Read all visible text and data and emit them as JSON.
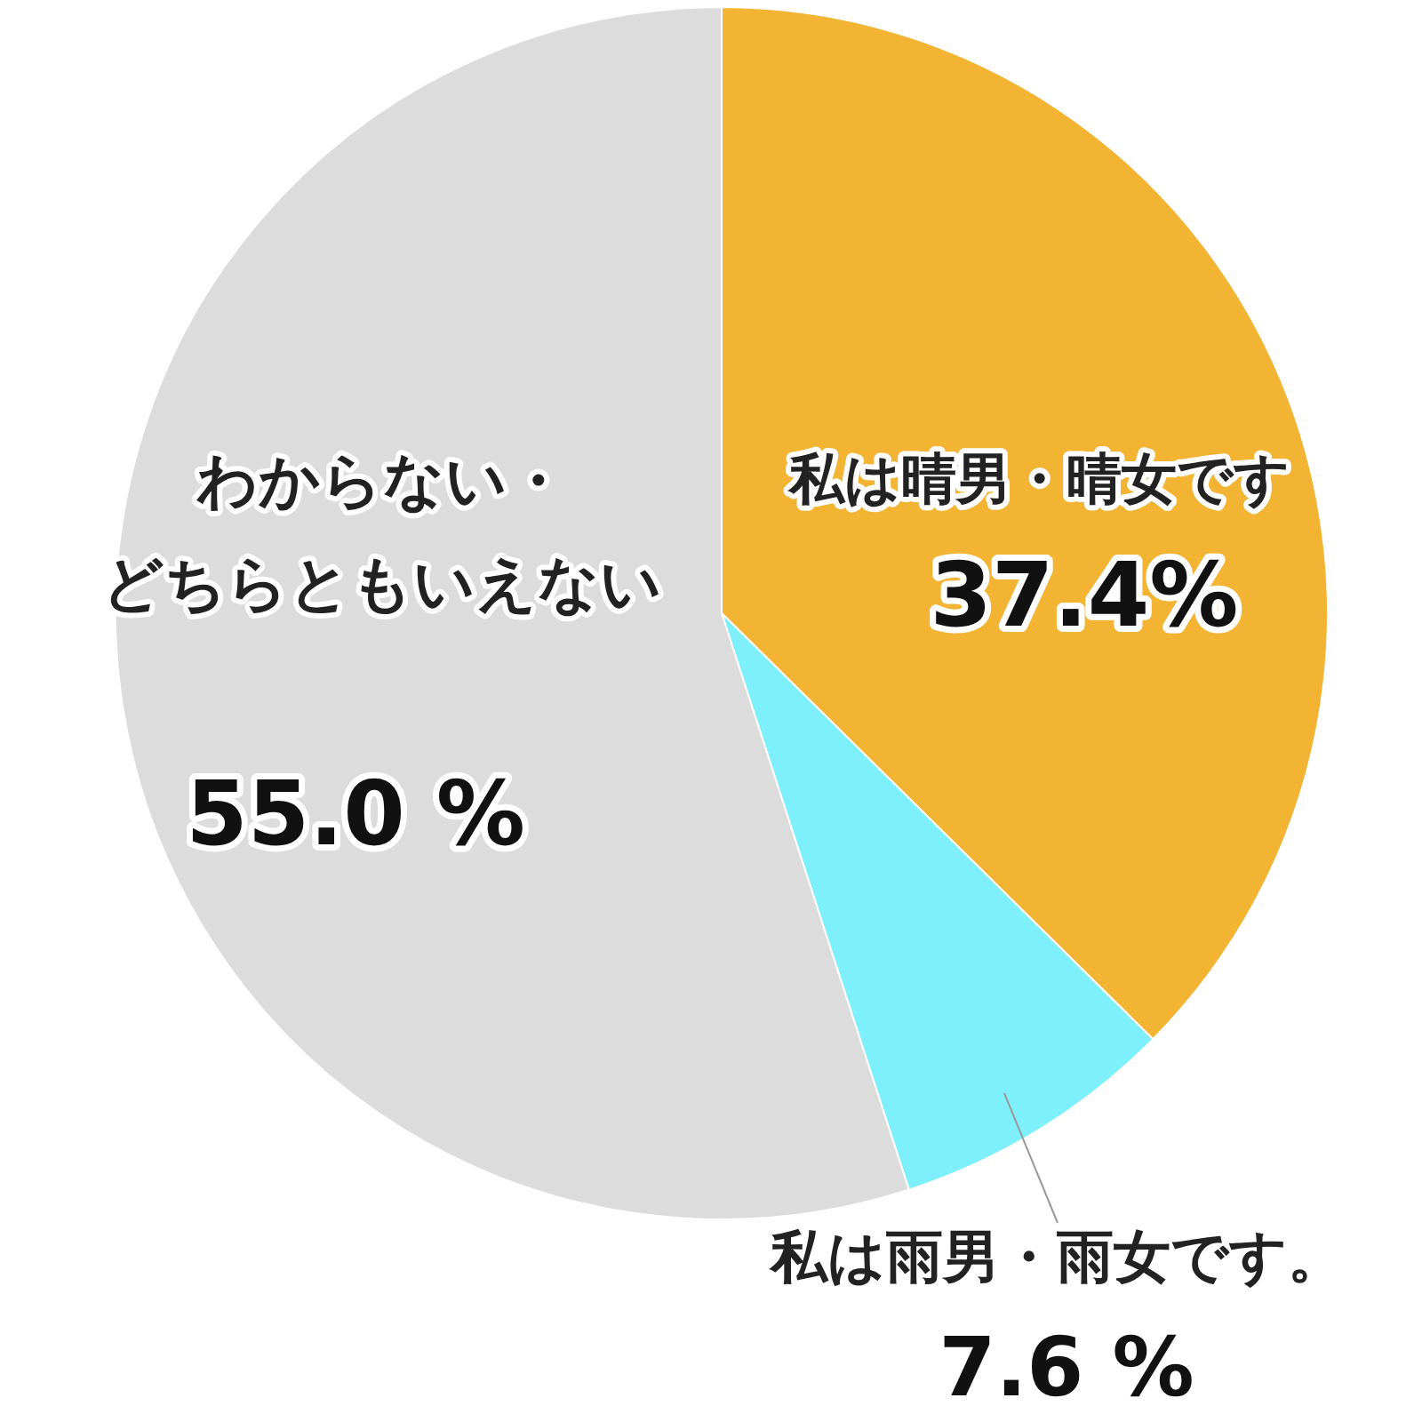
{
  "chart_data": {
    "type": "pie",
    "categories": [
      "私は晴男・晴女です",
      "私は雨男・雨女です。",
      "わからない・どちらともいえない"
    ],
    "values": [
      37.4,
      7.6,
      55.0
    ],
    "value_labels": [
      "37.4%",
      "7.6 %",
      "55.0 %"
    ],
    "colors": [
      "#f3b433",
      "#7df0fb",
      "#dcdcdc"
    ],
    "legend": false
  }
}
